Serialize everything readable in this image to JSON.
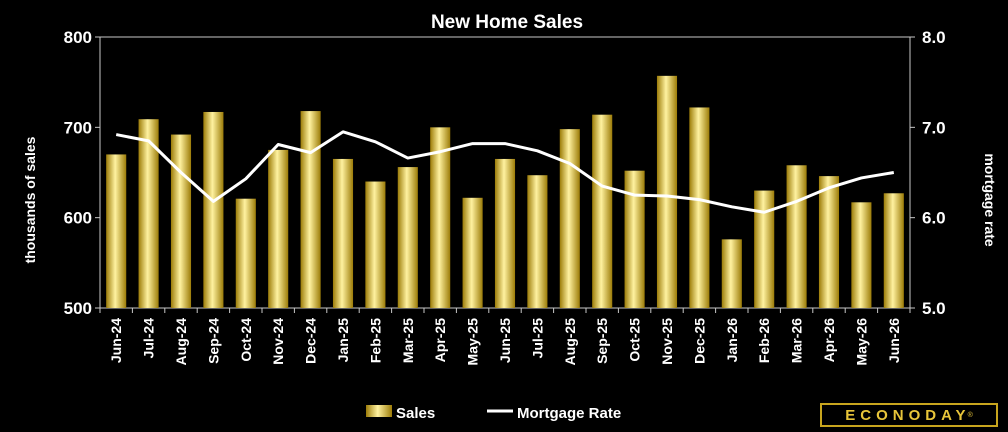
{
  "chart_data": {
    "type": "bar",
    "title": "New Home Sales",
    "categories": [
      "Jun-24",
      "Jul-24",
      "Aug-24",
      "Sep-24",
      "Oct-24",
      "Nov-24",
      "Dec-24",
      "Jan-25",
      "Feb-25",
      "Mar-25",
      "Apr-25",
      "May-25",
      "Jun-25",
      "Jul-25",
      "Aug-25",
      "Sep-25",
      "Oct-25",
      "Nov-25",
      "Dec-25",
      "Jan-26",
      "Feb-26",
      "Mar-26",
      "Apr-26",
      "May-26",
      "Jun-26"
    ],
    "series": [
      {
        "name": "Sales",
        "type": "bar",
        "axis": "left",
        "values": [
          670,
          709,
          692,
          717,
          621,
          675,
          718,
          665,
          640,
          656,
          700,
          622,
          665,
          647,
          698,
          714,
          652,
          757,
          722,
          576,
          630,
          658,
          646,
          617,
          627
        ]
      },
      {
        "name": "Mortgage Rate",
        "type": "line",
        "axis": "right",
        "values": [
          6.92,
          6.85,
          6.5,
          6.18,
          6.43,
          6.81,
          6.72,
          6.95,
          6.84,
          6.66,
          6.73,
          6.82,
          6.82,
          6.74,
          6.6,
          6.35,
          6.25,
          6.24,
          6.2,
          6.12,
          6.06,
          6.18,
          6.33,
          6.44,
          6.5
        ]
      }
    ],
    "ylabel": "thousands of sales",
    "ylabel_right": "mortgage rate",
    "ylim": [
      500,
      800
    ],
    "ylim_right": [
      5.0,
      8.0
    ],
    "yticks": [
      "500",
      "600",
      "700",
      "800"
    ],
    "yticks_right": [
      "5.0",
      "6.0",
      "7.0",
      "8.0"
    ],
    "legend_position": "bottom",
    "grid": false,
    "colors": {
      "bar": "#d7b21f",
      "bar_light": "#fff2a0",
      "bar_dark": "#9c7c08",
      "line": "#ffffff",
      "plot_bg": "#000000",
      "frame": "#c8c8c8"
    }
  },
  "branding": {
    "logo_text": "ECONODAY",
    "logo_mark": "®"
  }
}
